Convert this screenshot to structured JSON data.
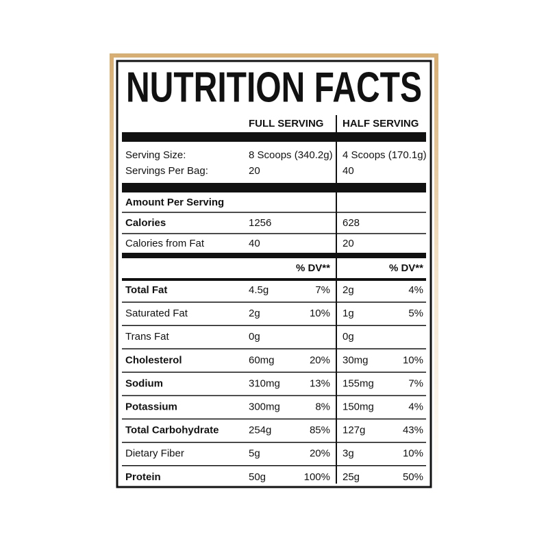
{
  "title": "NUTRITION FACTS",
  "columns": [
    "FULL SERVING",
    "HALF SERVING"
  ],
  "serving_rows": [
    [
      "Serving Size:",
      "8 Scoops (340.2g)",
      "4 Scoops (170.1g)"
    ],
    [
      "Servings Per Bag:",
      "20",
      "40"
    ]
  ],
  "amount_header": "Amount Per Serving",
  "calorie_rows": [
    [
      "Calories",
      "1256",
      "628"
    ],
    [
      "Calories from Fat",
      "40",
      "20"
    ]
  ],
  "dv_headers": [
    "% DV**",
    "% DV**"
  ],
  "nutrient_rows": [
    [
      "Total Fat",
      "4.5g",
      "7%",
      "2g",
      "4%"
    ],
    [
      "Saturated Fat",
      "2g",
      "10%",
      "1g",
      "5%"
    ],
    [
      "Trans Fat",
      "0g",
      null,
      "0g",
      null
    ],
    [
      "Cholesterol",
      "60mg",
      "20%",
      "30mg",
      "10%"
    ],
    [
      "Sodium",
      "310mg",
      "13%",
      "155mg",
      "7%"
    ],
    [
      "Potassium",
      "300mg",
      "8%",
      "150mg",
      "4%"
    ],
    [
      "Total Carbohydrate",
      "254g",
      "85%",
      "127g",
      "43%"
    ],
    [
      "Dietary Fiber",
      "5g",
      "20%",
      "3g",
      "10%"
    ],
    [
      "Protein",
      "50g",
      "100%",
      "25g",
      "50%"
    ]
  ]
}
